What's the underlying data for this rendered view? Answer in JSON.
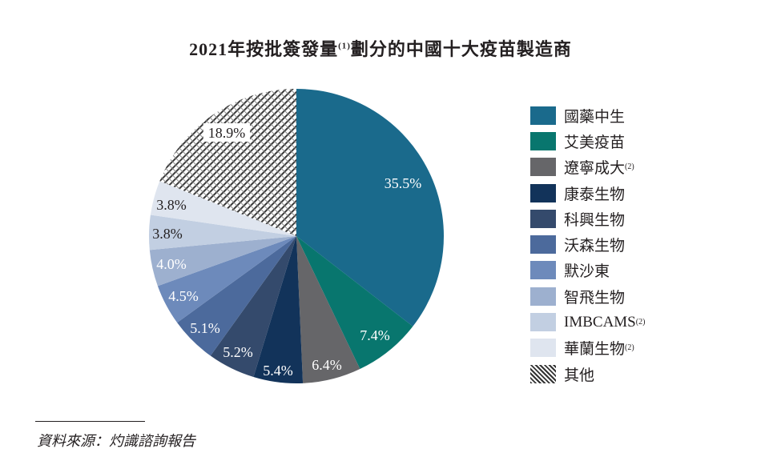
{
  "chart_data": {
    "type": "pie",
    "title": "2021年按批簽發量",
    "title_sup": "(1)",
    "title_rest": "劃分的中國十大疫苗製造商",
    "start": "top, clockwise",
    "slices": [
      {
        "name": "國藥中生",
        "value": 35.5,
        "label": "35.5%",
        "color": "#1a6a8c",
        "sup": ""
      },
      {
        "name": "艾美疫苗",
        "value": 7.4,
        "label": "7.4%",
        "color": "#08766e",
        "sup": ""
      },
      {
        "name": "遼寧成大",
        "value": 6.4,
        "label": "6.4%",
        "color": "#666669",
        "sup": "(2)"
      },
      {
        "name": "康泰生物",
        "value": 5.4,
        "label": "5.4%",
        "color": "#12335a",
        "sup": ""
      },
      {
        "name": "科興生物",
        "value": 5.2,
        "label": "5.2%",
        "color": "#344a6c",
        "sup": ""
      },
      {
        "name": "沃森生物",
        "value": 5.1,
        "label": "5.1%",
        "color": "#4c6a9c",
        "sup": ""
      },
      {
        "name": "默沙東",
        "value": 4.5,
        "label": "4.5%",
        "color": "#6d8abb",
        "sup": ""
      },
      {
        "name": "智飛生物",
        "value": 4.0,
        "label": "4.0%",
        "color": "#9db0cf",
        "sup": ""
      },
      {
        "name": "IMBCAMS",
        "value": 3.8,
        "label": "3.8%",
        "color": "#c2cfe2",
        "sup": "(2)"
      },
      {
        "name": "華蘭生物",
        "value": 3.8,
        "label": "3.8%",
        "color": "#dfe5ef",
        "sup": "(2)"
      },
      {
        "name": "其他",
        "value": 18.9,
        "label": "18.9%",
        "color": "pattern",
        "sup": ""
      }
    ],
    "legend_position": "right"
  },
  "source": "資料來源：灼識諮詢報告"
}
